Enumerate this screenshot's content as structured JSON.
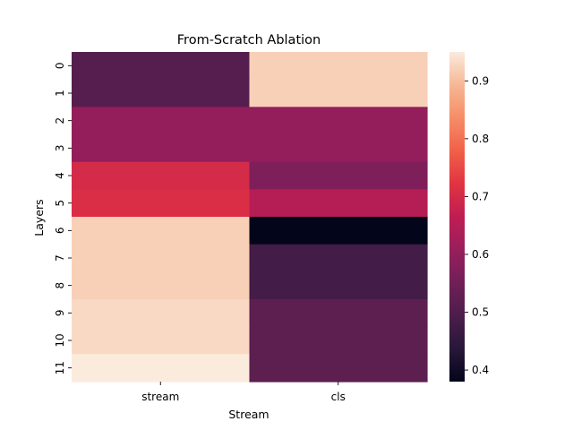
{
  "chart_data": {
    "type": "heatmap",
    "title": "From-Scratch Ablation",
    "xlabel": "Stream",
    "ylabel": "Layers",
    "x_categories": [
      "stream",
      "cls"
    ],
    "y_categories": [
      "0",
      "1",
      "2",
      "3",
      "4",
      "5",
      "6",
      "7",
      "8",
      "9",
      "10",
      "11"
    ],
    "values": [
      [
        0.51,
        0.92
      ],
      [
        0.51,
        0.92
      ],
      [
        0.6,
        0.6
      ],
      [
        0.6,
        0.6
      ],
      [
        0.7,
        0.57
      ],
      [
        0.71,
        0.65
      ],
      [
        0.92,
        0.38
      ],
      [
        0.92,
        0.48
      ],
      [
        0.92,
        0.48
      ],
      [
        0.93,
        0.52
      ],
      [
        0.93,
        0.52
      ],
      [
        0.95,
        0.52
      ]
    ],
    "colorbar": {
      "vmin": 0.38,
      "vmax": 0.95,
      "ticks": [
        "0.4",
        "0.5",
        "0.6",
        "0.7",
        "0.8",
        "0.9"
      ],
      "colormap": "rocket"
    },
    "grid": false,
    "legend": "none"
  }
}
